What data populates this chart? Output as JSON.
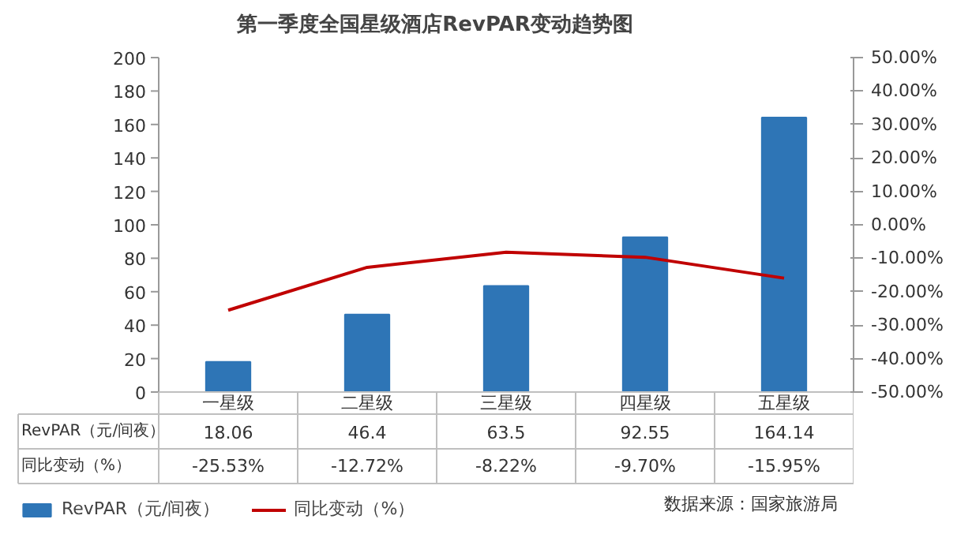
{
  "chart_data": {
    "type": "bar",
    "title": "第一季度全国星级酒店RevPAR变动趋势图",
    "categories": [
      "一星级",
      "二星级",
      "三星级",
      "四星级",
      "五星级"
    ],
    "series": [
      {
        "name": "RevPAR（元/间夜）",
        "color": "#2e75b6",
        "values": [
          18.06,
          46.4,
          63.5,
          92.55,
          164.14
        ],
        "value_labels": [
          "18.06",
          "46.4",
          "63.5",
          "92.55",
          "164.14"
        ]
      },
      {
        "name": "同比变动（%）",
        "type": "line",
        "axis": "y2",
        "color": "#c00000",
        "values": [
          -25.53,
          -12.72,
          -8.22,
          -9.7,
          -15.95
        ],
        "value_labels": [
          "-25.53%",
          "-12.72%",
          "-8.22%",
          "-9.70%",
          "-15.95%"
        ]
      }
    ],
    "ylim": [
      0,
      200
    ],
    "yticks": [
      0,
      20,
      40,
      60,
      80,
      100,
      120,
      140,
      160,
      180,
      200
    ],
    "y2lim": [
      -50,
      50
    ],
    "y2ticks": [
      {
        "value": -50,
        "label": "-50.00%"
      },
      {
        "value": -40,
        "label": "-40.00%"
      },
      {
        "value": -30,
        "label": "-30.00%"
      },
      {
        "value": -20,
        "label": "-20.00%"
      },
      {
        "value": -10,
        "label": "-10.00%"
      },
      {
        "value": 0,
        "label": "0.00%"
      },
      {
        "value": 10,
        "label": "10.00%"
      },
      {
        "value": 20,
        "label": "20.00%"
      },
      {
        "value": 30,
        "label": "30.00%"
      },
      {
        "value": 40,
        "label": "40.00%"
      },
      {
        "value": 50,
        "label": "50.00%"
      }
    ],
    "legend": "bottom",
    "annotations": [
      "数据来源：国家旅游局"
    ]
  }
}
